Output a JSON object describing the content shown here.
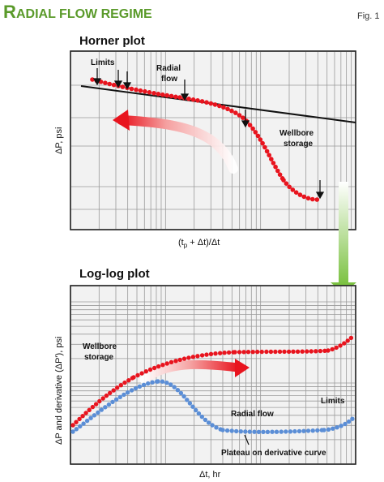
{
  "header": {
    "title_initial": "R",
    "title_rest": "ADIAL FLOW REGIME",
    "fig": "Fig. 1"
  },
  "horner": {
    "title": "Horner plot",
    "ylabel": "ΔP, psi",
    "xlabel_a": "(t",
    "xlabel_sub": "p",
    "xlabel_b": " + Δt)/Δt",
    "labels": {
      "limits": "Limits",
      "radial_1": "Radial",
      "radial_2": "flow",
      "wellbore_1": "Wellbore",
      "wellbore_2": "storage"
    }
  },
  "loglog": {
    "title": "Log-log plot",
    "ylabel": "ΔP and derivative (ΔP'), psi",
    "xlabel": "Δt, hr",
    "labels": {
      "wellbore_1": "Wellbore",
      "wellbore_2": "storage",
      "radial": "Radial flow",
      "limits": "Limits",
      "plateau": "Plateau on derivative curve"
    }
  },
  "colors": {
    "title_green": "#5a9a2a",
    "red": "#e8141e",
    "blue": "#5b8ed6",
    "grid": "#9a9a9a",
    "panel_bg": "#f2f2f2",
    "arrow_green": "#7cc242"
  }
}
